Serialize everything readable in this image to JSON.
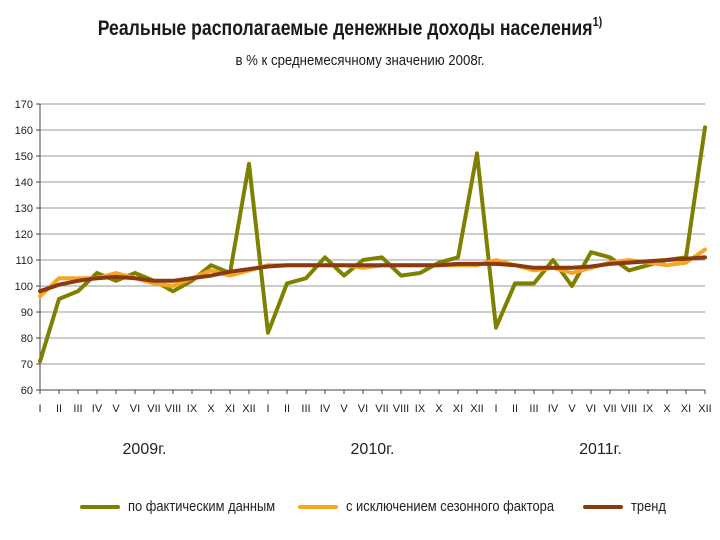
{
  "chart_data": {
    "type": "line",
    "title": "Реальные располагаемые денежные доходы населения",
    "title_footnote": "1)",
    "subtitle": "в % к среднемесячному значению 2008г.",
    "ylim": [
      60,
      170
    ],
    "yticks": [
      60,
      70,
      80,
      90,
      100,
      110,
      120,
      130,
      140,
      150,
      160,
      170
    ],
    "grid": true,
    "legend_position": "bottom",
    "categories": [
      "I",
      "II",
      "III",
      "IV",
      "V",
      "VI",
      "VII",
      "VIII",
      "IX",
      "X",
      "XI",
      "XII",
      "I",
      "II",
      "III",
      "IV",
      "V",
      "VI",
      "VII",
      "VIII",
      "IX",
      "X",
      "XI",
      "XII",
      "I",
      "II",
      "III",
      "IV",
      "V",
      "VI",
      "VII",
      "VIII",
      "IX",
      "X",
      "XI",
      "XII"
    ],
    "years": [
      "2009г.",
      "2010г.",
      "2011г."
    ],
    "series": [
      {
        "name": "по фактическим данным",
        "color": "#808000",
        "values": [
          71,
          95,
          98,
          105,
          102,
          105,
          102,
          98,
          102,
          108,
          105,
          147,
          82,
          101,
          103,
          111,
          104,
          110,
          111,
          104,
          105,
          109,
          111,
          151,
          84,
          101,
          101,
          110,
          100,
          113,
          111,
          106,
          108,
          110,
          111,
          161
        ]
      },
      {
        "name": "с исключением сезонного фактора",
        "color": "#f5a623",
        "values": [
          96,
          103,
          103,
          103,
          105,
          103,
          101,
          100,
          103,
          106,
          104,
          106,
          108,
          108,
          108,
          108,
          108,
          107,
          108,
          108,
          108,
          108,
          108,
          108,
          110,
          108,
          106,
          107,
          105,
          107,
          109,
          110,
          109,
          108,
          109,
          114
        ]
      },
      {
        "name": "тренд",
        "color": "#8b3a10",
        "values": [
          98,
          100.5,
          102,
          103,
          103.5,
          103,
          102,
          102,
          103,
          104,
          105.5,
          106.5,
          107.5,
          108,
          108,
          108,
          108,
          108,
          108,
          108,
          108,
          108,
          108.5,
          108.5,
          108.5,
          108,
          107,
          107,
          107,
          107.5,
          108.5,
          109,
          109.5,
          110,
          110.5,
          111
        ]
      }
    ]
  }
}
